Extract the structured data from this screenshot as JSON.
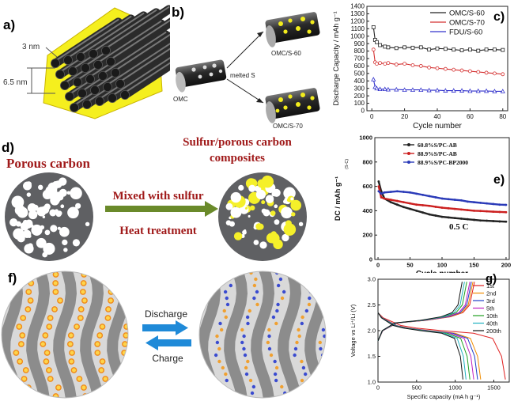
{
  "panels": {
    "a": {
      "label": "a)",
      "dim_small": "3 nm",
      "dim_large": "6.5 nm"
    },
    "b": {
      "label": "b)",
      "omc": "OMC",
      "melted": "melted S",
      "s60": "OMC/S-60",
      "s70": "OMC/S-70"
    },
    "d": {
      "label": "d)",
      "left": "Porous carbon",
      "right_line1": "Sulfur/porous carbon",
      "right_line2": "composites",
      "arrow_top": "Mixed with sulfur",
      "arrow_bottom": "Heat treatment"
    },
    "f": {
      "label": "f)",
      "discharge": "Discharge",
      "charge": "Charge"
    }
  },
  "chart_data": [
    {
      "panel": "c",
      "label": "c)",
      "type": "line",
      "xlabel": "Cycle number",
      "ylabel": "Discharge Capacity / mAh g⁻¹",
      "xlim": [
        -3,
        83
      ],
      "ylim": [
        0,
        1400
      ],
      "xticks": [
        0,
        20,
        40,
        60,
        80
      ],
      "yticks": [
        0,
        100,
        200,
        300,
        400,
        500,
        600,
        700,
        800,
        900,
        1000,
        1100,
        1200,
        1300,
        1400
      ],
      "legend": "top-right",
      "series": [
        {
          "name": "OMC/S-60",
          "color": "#222222",
          "marker": "square",
          "x": [
            1,
            2,
            3,
            5,
            8,
            10,
            15,
            20,
            25,
            30,
            35,
            40,
            45,
            50,
            55,
            60,
            65,
            70,
            75,
            80
          ],
          "y": [
            1120,
            950,
            920,
            880,
            860,
            850,
            840,
            850,
            845,
            850,
            820,
            835,
            830,
            820,
            810,
            820,
            805,
            820,
            820,
            815
          ]
        },
        {
          "name": "OMC/S-70",
          "color": "#d43030",
          "marker": "circle",
          "x": [
            1,
            2,
            3,
            5,
            8,
            10,
            15,
            20,
            25,
            30,
            35,
            40,
            45,
            50,
            55,
            60,
            65,
            70,
            75,
            80
          ],
          "y": [
            820,
            650,
            630,
            640,
            630,
            640,
            620,
            630,
            610,
            600,
            580,
            570,
            560,
            550,
            540,
            530,
            520,
            510,
            500,
            490
          ]
        },
        {
          "name": "FDU/S-60",
          "color": "#3333cc",
          "marker": "triangle",
          "x": [
            1,
            2,
            3,
            5,
            8,
            10,
            15,
            20,
            25,
            30,
            35,
            40,
            45,
            50,
            55,
            60,
            65,
            70,
            75,
            80
          ],
          "y": [
            420,
            320,
            300,
            290,
            290,
            285,
            285,
            280,
            280,
            280,
            275,
            275,
            270,
            270,
            270,
            265,
            265,
            265,
            260,
            260
          ]
        }
      ]
    },
    {
      "panel": "e",
      "label": "e)",
      "type": "line",
      "xlabel": "Cycle number",
      "ylabel": "DC / mAh g⁻¹",
      "ylabel_sub": "(S-C)",
      "xlim": [
        -5,
        205
      ],
      "ylim": [
        0,
        1000
      ],
      "xticks": [
        0,
        50,
        100,
        150,
        200
      ],
      "yticks": [
        0,
        200,
        400,
        600,
        800,
        1000
      ],
      "annotation": "0.5 C",
      "legend": "top-right",
      "series": [
        {
          "name": "60.8%S/PC-AB",
          "color": "#222222",
          "x": [
            1,
            5,
            10,
            20,
            30,
            40,
            50,
            60,
            70,
            80,
            90,
            100,
            110,
            120,
            130,
            140,
            150,
            160,
            170,
            180,
            190,
            200
          ],
          "y": [
            640,
            560,
            500,
            470,
            450,
            430,
            415,
            400,
            385,
            370,
            360,
            350,
            345,
            340,
            335,
            330,
            325,
            320,
            318,
            315,
            312,
            310
          ]
        },
        {
          "name": "88.9%S/PC-AB",
          "color": "#cc2020",
          "x": [
            1,
            5,
            10,
            20,
            30,
            40,
            50,
            60,
            70,
            80,
            90,
            100,
            110,
            120,
            130,
            140,
            150,
            160,
            170,
            180,
            190,
            200
          ],
          "y": [
            600,
            510,
            500,
            490,
            480,
            470,
            460,
            450,
            445,
            440,
            432,
            425,
            420,
            415,
            410,
            405,
            400,
            398,
            395,
            392,
            390,
            388
          ]
        },
        {
          "name": "88.9%S/PC-BP2000",
          "color": "#2a3ab8",
          "x": [
            1,
            5,
            10,
            20,
            30,
            40,
            50,
            60,
            70,
            80,
            90,
            100,
            110,
            120,
            130,
            140,
            150,
            160,
            170,
            180,
            190,
            200
          ],
          "y": [
            560,
            540,
            550,
            555,
            560,
            555,
            550,
            540,
            530,
            520,
            510,
            500,
            495,
            490,
            485,
            475,
            470,
            465,
            460,
            455,
            450,
            448
          ]
        }
      ]
    },
    {
      "panel": "g",
      "label": "g)",
      "type": "line",
      "xlabel": "Specific capacity (mA h g⁻¹)",
      "ylabel": "Voltage vs Li⁺/Li (V)",
      "xlim": [
        0,
        1700
      ],
      "ylim": [
        1.0,
        3.0
      ],
      "xticks": [
        0,
        500,
        1000,
        1500
      ],
      "yticks": [
        1.0,
        1.5,
        2.0,
        2.5,
        3.0
      ],
      "legend": "top-right",
      "series": [
        {
          "name": "1st",
          "color": "#e02020",
          "discharge_cap": 1650,
          "charge_cap": 1250
        },
        {
          "name": "2nd",
          "color": "#f08c00",
          "discharge_cap": 1330,
          "charge_cap": 1230
        },
        {
          "name": "3rd",
          "color": "#1f3fc8",
          "discharge_cap": 1290,
          "charge_cap": 1210
        },
        {
          "name": "5th",
          "color": "#c020c0",
          "discharge_cap": 1240,
          "charge_cap": 1190
        },
        {
          "name": "10th",
          "color": "#20a020",
          "discharge_cap": 1190,
          "charge_cap": 1150
        },
        {
          "name": "40th",
          "color": "#20b0c0",
          "discharge_cap": 1140,
          "charge_cap": 1120
        },
        {
          "name": "200th",
          "color": "#111111",
          "discharge_cap": 1100,
          "charge_cap": 1090
        }
      ]
    }
  ]
}
